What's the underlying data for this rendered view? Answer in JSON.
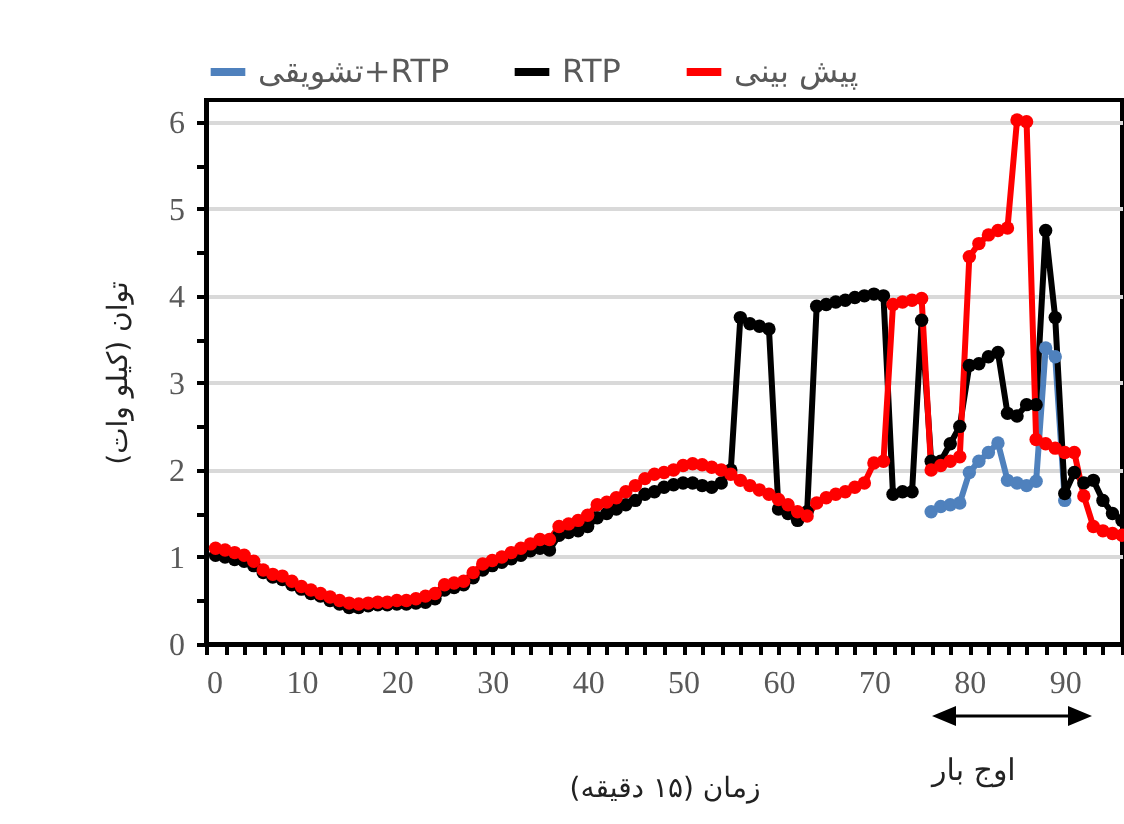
{
  "chart_data": {
    "type": "line",
    "xlabel": "زمان (۱۵ دقیقه)",
    "ylabel": "توان (کیلو وات)",
    "x": [
      1,
      2,
      3,
      4,
      5,
      6,
      7,
      8,
      9,
      10,
      11,
      12,
      13,
      14,
      15,
      16,
      17,
      18,
      19,
      20,
      21,
      22,
      23,
      24,
      25,
      26,
      27,
      28,
      29,
      30,
      31,
      32,
      33,
      34,
      35,
      36,
      37,
      38,
      39,
      40,
      41,
      42,
      43,
      44,
      45,
      46,
      47,
      48,
      49,
      50,
      51,
      52,
      53,
      54,
      55,
      56,
      57,
      58,
      59,
      60,
      61,
      62,
      63,
      64,
      65,
      66,
      67,
      68,
      69,
      70,
      71,
      72,
      73,
      74,
      75,
      76,
      77,
      78,
      79,
      80,
      81,
      82,
      83,
      84,
      85,
      86,
      87,
      88,
      89,
      90,
      91,
      92,
      93,
      94,
      95,
      96
    ],
    "series": [
      {
        "name": "تشویقی+RTP",
        "color": "#4f81bd",
        "values": [
          null,
          null,
          null,
          null,
          null,
          null,
          null,
          null,
          null,
          null,
          null,
          null,
          null,
          null,
          null,
          null,
          null,
          null,
          null,
          null,
          null,
          null,
          null,
          null,
          null,
          null,
          null,
          null,
          null,
          null,
          null,
          null,
          null,
          null,
          null,
          null,
          null,
          null,
          null,
          null,
          null,
          null,
          null,
          null,
          null,
          null,
          null,
          null,
          null,
          null,
          null,
          null,
          null,
          null,
          null,
          null,
          null,
          null,
          null,
          null,
          null,
          null,
          null,
          null,
          null,
          null,
          null,
          null,
          null,
          null,
          null,
          null,
          null,
          null,
          null,
          1.52,
          1.58,
          1.6,
          1.62,
          1.97,
          2.1,
          2.2,
          2.31,
          1.88,
          1.85,
          1.82,
          1.87,
          3.4,
          3.3,
          1.65,
          null,
          null,
          null,
          null,
          null,
          null
        ]
      },
      {
        "name": "RTP",
        "color": "#000000",
        "values": [
          1.02,
          1.0,
          0.97,
          0.95,
          0.9,
          0.82,
          0.77,
          0.74,
          0.68,
          0.63,
          0.58,
          0.55,
          0.5,
          0.46,
          0.42,
          0.42,
          0.44,
          0.45,
          0.45,
          0.46,
          0.46,
          0.47,
          0.48,
          0.52,
          0.62,
          0.65,
          0.68,
          0.76,
          0.85,
          0.9,
          0.94,
          0.98,
          1.02,
          1.07,
          1.1,
          1.08,
          1.25,
          1.28,
          1.3,
          1.35,
          1.45,
          1.5,
          1.55,
          1.6,
          1.65,
          1.72,
          1.75,
          1.8,
          1.83,
          1.85,
          1.85,
          1.82,
          1.8,
          1.85,
          2.0,
          3.75,
          3.68,
          3.65,
          3.62,
          1.55,
          1.5,
          1.42,
          1.52,
          3.88,
          3.9,
          3.93,
          3.95,
          3.98,
          4.0,
          4.02,
          4.0,
          1.72,
          1.75,
          1.75,
          3.72,
          2.1,
          2.1,
          2.3,
          2.5,
          3.2,
          3.22,
          3.3,
          3.35,
          2.65,
          2.62,
          2.75,
          2.75,
          4.75,
          3.75,
          1.73,
          1.97,
          1.85,
          1.88,
          1.65,
          1.5,
          1.42
        ]
      },
      {
        "name": "پیش بینی",
        "color": "#ff0000",
        "values": [
          1.1,
          1.08,
          1.05,
          1.02,
          0.95,
          0.85,
          0.8,
          0.78,
          0.72,
          0.66,
          0.62,
          0.58,
          0.54,
          0.5,
          0.47,
          0.46,
          0.47,
          0.48,
          0.48,
          0.5,
          0.5,
          0.52,
          0.55,
          0.58,
          0.68,
          0.7,
          0.72,
          0.82,
          0.92,
          0.96,
          1.0,
          1.05,
          1.1,
          1.15,
          1.2,
          1.2,
          1.35,
          1.38,
          1.42,
          1.48,
          1.6,
          1.63,
          1.68,
          1.75,
          1.82,
          1.9,
          1.95,
          1.97,
          2.0,
          2.05,
          2.07,
          2.06,
          2.03,
          2.0,
          1.95,
          1.88,
          1.82,
          1.77,
          1.72,
          1.66,
          1.6,
          1.52,
          1.47,
          1.62,
          1.68,
          1.72,
          1.75,
          1.8,
          1.85,
          2.08,
          2.1,
          3.9,
          3.93,
          3.95,
          3.97,
          2.0,
          2.05,
          2.1,
          2.15,
          4.45,
          4.6,
          4.7,
          4.75,
          4.78,
          6.02,
          6.0,
          2.35,
          2.3,
          2.25,
          2.2,
          2.2,
          1.7,
          1.35,
          1.3,
          1.27,
          1.25
        ]
      }
    ],
    "xlim": [
      0,
      96
    ],
    "ylim": [
      0,
      6.25
    ],
    "xticks": [
      0,
      {
        "value": 2,
        "label": null
      },
      {
        "value": 4,
        "label": null
      },
      {
        "value": 6,
        "label": null
      },
      {
        "value": 8,
        "label": null
      },
      10,
      {
        "value": 12,
        "label": null
      },
      {
        "value": 14,
        "label": null
      },
      {
        "value": 16,
        "label": null
      },
      {
        "value": 18,
        "label": null
      },
      20,
      {
        "value": 22,
        "label": null
      },
      {
        "value": 24,
        "label": null
      },
      {
        "value": 26,
        "label": null
      },
      {
        "value": 28,
        "label": null
      },
      30,
      {
        "value": 32,
        "label": null
      },
      {
        "value": 34,
        "label": null
      },
      {
        "value": 36,
        "label": null
      },
      {
        "value": 38,
        "label": null
      },
      40,
      {
        "value": 42,
        "label": null
      },
      {
        "value": 44,
        "label": null
      },
      {
        "value": 46,
        "label": null
      },
      {
        "value": 48,
        "label": null
      },
      50,
      {
        "value": 52,
        "label": null
      },
      {
        "value": 54,
        "label": null
      },
      {
        "value": 56,
        "label": null
      },
      {
        "value": 58,
        "label": null
      },
      60,
      {
        "value": 62,
        "label": null
      },
      {
        "value": 64,
        "label": null
      },
      {
        "value": 66,
        "label": null
      },
      {
        "value": 68,
        "label": null
      },
      70,
      {
        "value": 72,
        "label": null
      },
      {
        "value": 74,
        "label": null
      },
      {
        "value": 76,
        "label": null
      },
      {
        "value": 78,
        "label": null
      },
      80,
      {
        "value": 82,
        "label": null
      },
      {
        "value": 84,
        "label": null
      },
      {
        "value": 86,
        "label": null
      },
      {
        "value": 88,
        "label": null
      },
      90,
      {
        "value": 92,
        "label": null
      },
      {
        "value": 94,
        "label": null
      },
      {
        "value": 96,
        "label": null
      }
    ],
    "yticks": [
      0,
      {
        "value": 0.5,
        "label": null
      },
      1,
      {
        "value": 1.5,
        "label": null
      },
      2,
      {
        "value": 2.5,
        "label": null
      },
      3,
      {
        "value": 3.5,
        "label": null
      },
      4,
      {
        "value": 4.5,
        "label": null
      },
      5,
      {
        "value": 5.5,
        "label": null
      },
      6
    ],
    "grid": "y",
    "legend": "top",
    "marker": "circle",
    "line_style": "solid",
    "annotations": [
      "اوج بار"
    ]
  }
}
